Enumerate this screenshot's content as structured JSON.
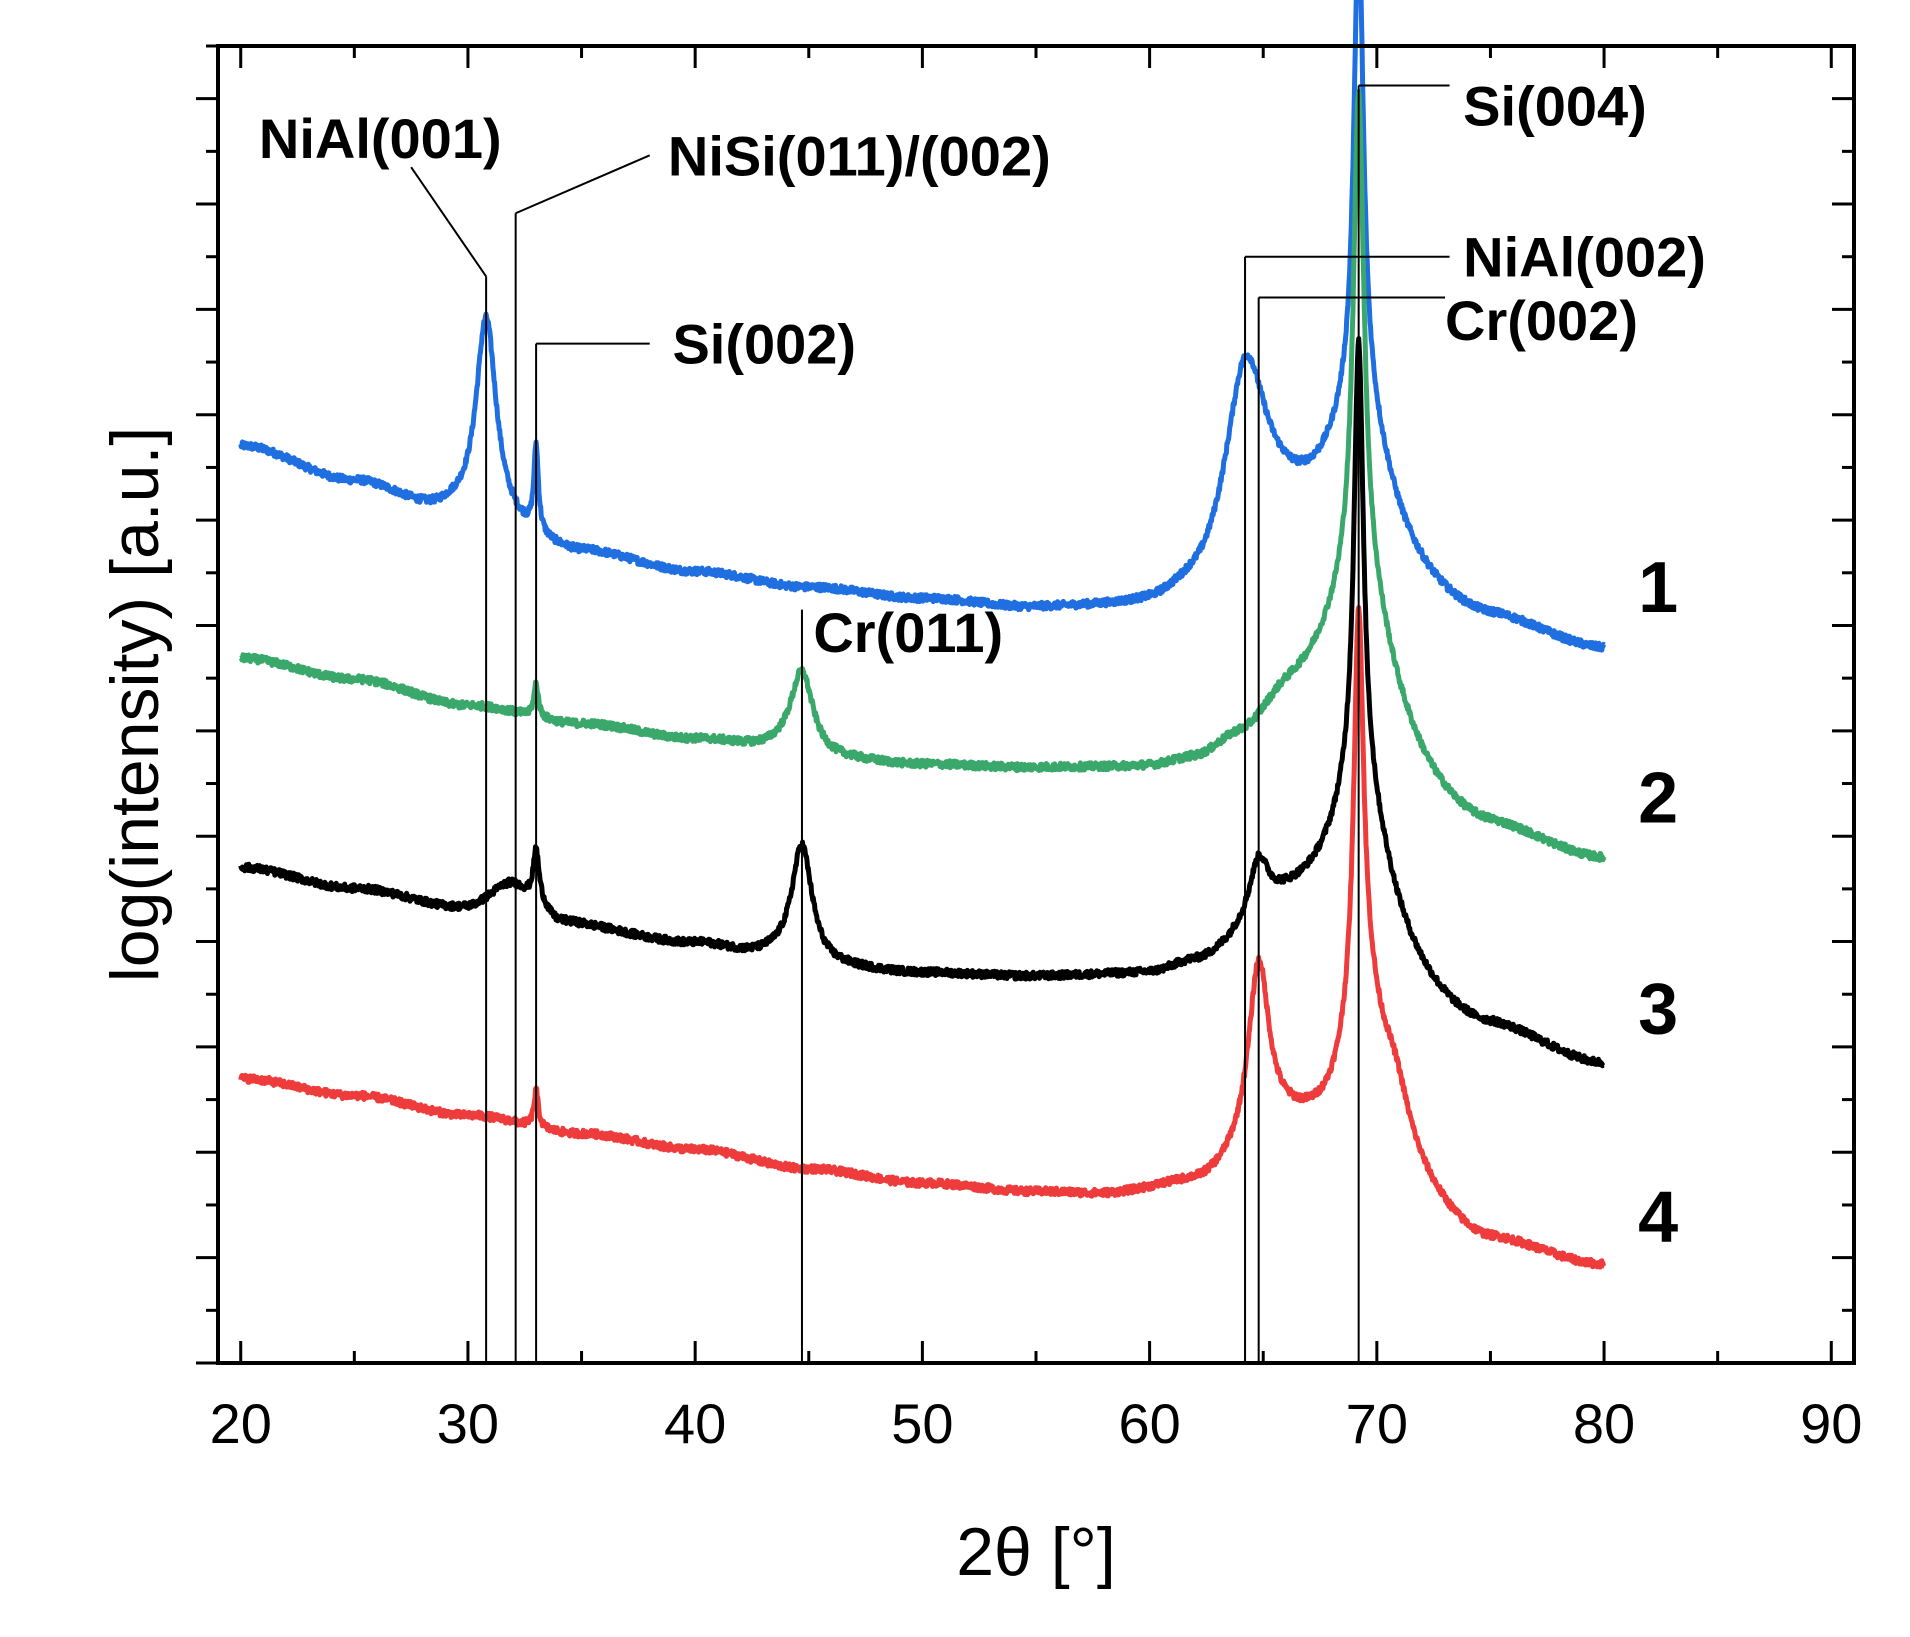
{
  "chart_data": {
    "type": "line",
    "title": "",
    "xlabel": "2θ [°]",
    "ylabel": "log(intensity) [a.u.]",
    "xlim": [
      19,
      91
    ],
    "ylim": [
      0,
      100
    ],
    "x_ticks": [
      20,
      30,
      40,
      50,
      60,
      70,
      80,
      90
    ],
    "x_tick_labels": [
      "20",
      "30",
      "40",
      "50",
      "60",
      "70",
      "80",
      "90"
    ],
    "y_tick_labels": false,
    "colors": {
      "1": "#1f6fe0",
      "2": "#3aa86b",
      "3": "#000000",
      "4": "#ee3b3b"
    },
    "series": [
      {
        "name": "1",
        "color": "#1f6fe0",
        "baseline_points": [
          [
            20,
            69.6
          ],
          [
            25,
            66.9
          ],
          [
            29,
            64.6
          ],
          [
            31,
            63.3
          ],
          [
            35,
            61.5
          ],
          [
            40,
            60.0
          ],
          [
            45,
            58.8
          ],
          [
            50,
            57.9
          ],
          [
            55,
            57.1
          ],
          [
            60,
            57.0
          ],
          [
            62,
            57.6
          ],
          [
            66,
            62.6
          ],
          [
            75,
            56.0
          ],
          [
            80,
            54.0
          ]
        ],
        "peaks": [
          {
            "center": 30.8,
            "height": 16.0,
            "width": 0.55
          },
          {
            "center": 33.0,
            "height": 6.5,
            "width": 0.12
          },
          {
            "center": 64.2,
            "height": 14.8,
            "width": 1.1
          },
          {
            "center": 69.2,
            "height": 36.0,
            "width": 0.25
          },
          {
            "center": 69.3,
            "height": 12.0,
            "width": 1.6
          }
        ]
      },
      {
        "name": "2",
        "color": "#3aa86b",
        "baseline_points": [
          [
            20,
            53.5
          ],
          [
            25,
            51.9
          ],
          [
            30,
            49.9
          ],
          [
            35,
            48.5
          ],
          [
            40,
            47.3
          ],
          [
            43.5,
            46.6
          ],
          [
            46,
            45.7
          ],
          [
            50,
            45.3
          ],
          [
            55,
            45.0
          ],
          [
            60,
            44.9
          ],
          [
            62,
            45.3
          ],
          [
            64,
            46.6
          ],
          [
            66,
            48.6
          ],
          [
            75,
            40.0
          ],
          [
            80,
            38.0
          ]
        ],
        "peaks": [
          {
            "center": 33.0,
            "height": 2.6,
            "width": 0.12
          },
          {
            "center": 44.7,
            "height": 6.3,
            "width": 0.6
          },
          {
            "center": 69.2,
            "height": 36.5,
            "width": 0.28
          },
          {
            "center": 69.3,
            "height": 14.0,
            "width": 1.8
          }
        ]
      },
      {
        "name": "3",
        "color": "#000000",
        "baseline_points": [
          [
            20,
            37.6
          ],
          [
            25,
            36.0
          ],
          [
            30,
            34.4
          ],
          [
            31.5,
            35.0
          ],
          [
            33,
            34.5
          ],
          [
            34,
            33.3
          ],
          [
            40,
            31.8
          ],
          [
            43,
            30.9
          ],
          [
            46,
            29.9
          ],
          [
            50,
            29.5
          ],
          [
            55,
            29.2
          ],
          [
            60,
            29.3
          ],
          [
            62,
            30.0
          ],
          [
            66,
            33.5
          ],
          [
            75,
            25.0
          ],
          [
            80,
            22.5
          ]
        ],
        "peaks": [
          {
            "center": 32.0,
            "height": 1.5,
            "width": 1.0
          },
          {
            "center": 33.0,
            "height": 3.8,
            "width": 0.15
          },
          {
            "center": 44.7,
            "height": 9.0,
            "width": 0.55
          },
          {
            "center": 64.8,
            "height": 4.2,
            "width": 0.5
          },
          {
            "center": 69.2,
            "height": 33.5,
            "width": 0.25
          },
          {
            "center": 69.3,
            "height": 13.0,
            "width": 1.6
          }
        ]
      },
      {
        "name": "4",
        "color": "#ee3b3b",
        "baseline_points": [
          [
            20,
            21.6
          ],
          [
            25,
            20.3
          ],
          [
            30,
            18.8
          ],
          [
            35,
            17.4
          ],
          [
            40,
            16.2
          ],
          [
            45,
            14.7
          ],
          [
            50,
            13.6
          ],
          [
            55,
            12.9
          ],
          [
            58,
            12.7
          ],
          [
            62,
            13.4
          ],
          [
            66,
            17.0
          ],
          [
            70,
            14.0
          ],
          [
            75,
            9.0
          ],
          [
            80,
            7.3
          ]
        ],
        "peaks": [
          {
            "center": 33.0,
            "height": 2.8,
            "width": 0.12
          },
          {
            "center": 64.8,
            "height": 13.5,
            "width": 0.55
          },
          {
            "center": 69.2,
            "height": 29.0,
            "width": 0.25
          },
          {
            "center": 69.4,
            "height": 13.5,
            "width": 1.1
          },
          {
            "center": 70.8,
            "height": 4.0,
            "width": 0.8
          }
        ]
      }
    ],
    "series_labels": [
      {
        "text": "1",
        "x": 81.5,
        "y": 59.0
      },
      {
        "text": "2",
        "x": 81.5,
        "y": 43.0
      },
      {
        "text": "3",
        "x": 81.5,
        "y": 27.0
      },
      {
        "text": "4",
        "x": 81.5,
        "y": 11.2
      }
    ],
    "annotations": [
      {
        "text": "NiAl(001)",
        "peak_x": 30.8,
        "line_top": 82.5,
        "kink_x": 27.5,
        "kink_y": 90.8,
        "label_x": 20.8,
        "label_y": 93.0,
        "anchor": "start"
      },
      {
        "text": "NiSi(011)/(002)",
        "peak_x": 32.1,
        "line_top": 87.3,
        "kink_x": 38.0,
        "kink_y": 91.7,
        "label_x": 38.8,
        "label_y": 91.7,
        "anchor": "start"
      },
      {
        "text": "Si(002)",
        "peak_x": 33.0,
        "line_top": 77.4,
        "kink_x": 38.0,
        "kink_y": 77.4,
        "label_x": 39.0,
        "label_y": 77.4,
        "anchor": "start"
      },
      {
        "text": "Cr(011)",
        "peak_x": 44.7,
        "line_top": 57.2,
        "kink_x": null,
        "kink_y": null,
        "label_x": 45.2,
        "label_y": 55.5,
        "anchor": "start"
      },
      {
        "text": "NiAl(002)",
        "peak_x": 64.2,
        "line_top": 84.0,
        "kink_x": 73.2,
        "kink_y": 84.0,
        "label_x": 73.8,
        "label_y": 84.0,
        "anchor": "start"
      },
      {
        "text": "Cr(002)",
        "peak_x": 64.8,
        "line_top": 80.9,
        "kink_x": 73.0,
        "kink_y": 80.9,
        "label_x": 73.0,
        "label_y": 79.2,
        "anchor": "start"
      },
      {
        "text": "Si(004)",
        "peak_x": 69.2,
        "line_top": 97.0,
        "kink_x": 73.2,
        "kink_y": 97.0,
        "label_x": 73.8,
        "label_y": 95.5,
        "anchor": "start"
      }
    ],
    "annotation_line_bottom": 0,
    "legend": "none",
    "grid": false
  }
}
